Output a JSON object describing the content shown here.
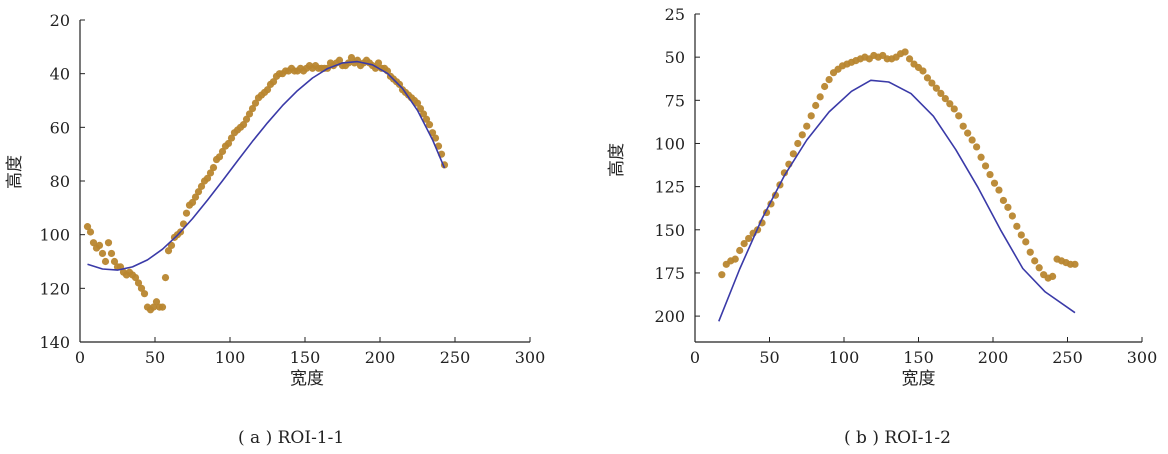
{
  "chart_data": [
    {
      "type": "scatter",
      "caption": "( a ) ROI-1-1",
      "xlabel": "宽度",
      "ylabel": "高度",
      "xlim": [
        0,
        300
      ],
      "ylim": [
        140,
        20
      ],
      "y_inverted": true,
      "xticks": [
        0,
        50,
        100,
        150,
        200,
        250,
        300
      ],
      "yticks": [
        20,
        40,
        60,
        80,
        100,
        120,
        140
      ],
      "colors": {
        "points": "#b8862f",
        "fit": "#3a3aa8"
      },
      "series": [
        {
          "kind": "points",
          "x": [
            5,
            7,
            9,
            11,
            13,
            15,
            17,
            19,
            21,
            23,
            25,
            27,
            29,
            31,
            33,
            35,
            37,
            39,
            41,
            43,
            45,
            47,
            49,
            51,
            53,
            55,
            57,
            59,
            61,
            63,
            65,
            67,
            69,
            71,
            73,
            75,
            77,
            79,
            81,
            83,
            85,
            87,
            89,
            91,
            93,
            95,
            97,
            99,
            101,
            103,
            105,
            107,
            109,
            111,
            113,
            115,
            117,
            119,
            121,
            123,
            125,
            127,
            129,
            131,
            133,
            135,
            137,
            139,
            141,
            143,
            145,
            147,
            149,
            151,
            153,
            155,
            157,
            159,
            161,
            163,
            165,
            167,
            169,
            171,
            173,
            175,
            177,
            179,
            181,
            183,
            185,
            187,
            189,
            191,
            193,
            195,
            197,
            199,
            201,
            203,
            205,
            207,
            209,
            211,
            213,
            215,
            217,
            219,
            221,
            223,
            225,
            227,
            229,
            231,
            233,
            235,
            237,
            239,
            241,
            243
          ],
          "y": [
            97,
            99,
            103,
            105,
            104,
            107,
            110,
            103,
            107,
            110,
            112,
            112,
            114,
            115,
            114,
            115,
            116,
            118,
            120,
            122,
            127,
            128,
            127,
            125,
            127,
            127,
            116,
            106,
            104,
            101,
            100,
            99,
            96,
            92,
            89,
            88,
            86,
            84,
            82,
            80,
            79,
            77,
            75,
            72,
            71,
            69,
            67,
            66,
            64,
            62,
            61,
            60,
            59,
            57,
            55,
            53,
            51,
            49,
            48,
            47,
            46,
            44,
            43,
            41,
            40,
            40,
            39,
            39,
            38,
            39,
            39,
            38,
            39,
            38,
            37,
            38,
            37,
            38,
            38,
            38,
            38,
            36,
            37,
            36,
            35,
            37,
            37,
            36,
            34,
            36,
            35,
            37,
            36,
            35,
            36,
            37,
            38,
            36,
            38,
            38,
            39,
            41,
            42,
            43,
            44,
            46,
            47,
            48,
            49,
            50,
            51,
            53,
            55,
            57,
            59,
            62,
            64,
            67,
            70,
            74
          ]
        },
        {
          "kind": "fit-curve",
          "x": [
            5,
            15,
            25,
            35,
            45,
            55,
            65,
            75,
            85,
            95,
            105,
            115,
            125,
            135,
            145,
            155,
            165,
            175,
            185,
            195,
            205,
            215,
            225,
            235,
            243
          ],
          "y": [
            111,
            112.8,
            113.2,
            112,
            109.4,
            105.4,
            100.2,
            94,
            87.1,
            79.9,
            72.5,
            65.2,
            58.3,
            51.9,
            46.3,
            41.6,
            38.1,
            36,
            35.5,
            36.7,
            39.9,
            45.5,
            53.7,
            64.6,
            75.2
          ]
        }
      ]
    },
    {
      "type": "scatter",
      "caption": "( b ) ROI-1-2",
      "xlabel": "宽度",
      "ylabel": "高度",
      "xlim": [
        0,
        300
      ],
      "ylim": [
        215,
        25
      ],
      "y_inverted": true,
      "xticks": [
        0,
        50,
        100,
        150,
        200,
        250,
        300
      ],
      "yticks": [
        25,
        50,
        75,
        100,
        125,
        150,
        175,
        200
      ],
      "colors": {
        "points": "#b8862f",
        "fit": "#3a3aa8"
      },
      "series": [
        {
          "kind": "points",
          "x": [
            18,
            21,
            24,
            27,
            30,
            33,
            36,
            39,
            42,
            45,
            48,
            51,
            54,
            57,
            60,
            63,
            66,
            69,
            72,
            75,
            78,
            81,
            84,
            87,
            90,
            93,
            96,
            99,
            102,
            105,
            108,
            111,
            114,
            117,
            120,
            123,
            126,
            129,
            132,
            135,
            138,
            141,
            144,
            147,
            150,
            153,
            156,
            159,
            162,
            165,
            168,
            171,
            174,
            177,
            180,
            183,
            186,
            189,
            192,
            195,
            198,
            201,
            204,
            207,
            210,
            213,
            216,
            219,
            222,
            225,
            228,
            231,
            234,
            237,
            240,
            243,
            246,
            249,
            252,
            255
          ],
          "y": [
            176,
            170,
            168,
            167,
            162,
            158,
            155,
            152,
            150,
            146,
            140,
            135,
            130,
            124,
            117,
            112,
            106,
            100,
            95,
            90,
            84,
            78,
            73,
            67,
            63,
            59,
            57,
            55,
            54,
            53,
            52,
            51,
            50,
            51,
            49,
            50,
            49,
            51,
            51,
            50,
            48,
            47,
            51,
            54,
            56,
            58,
            62,
            65,
            68,
            71,
            74,
            77,
            80,
            84,
            90,
            94,
            98,
            102,
            108,
            113,
            118,
            123,
            127,
            133,
            137,
            142,
            148,
            153,
            157,
            163,
            168,
            172,
            176,
            178,
            177,
            167,
            168,
            169,
            170,
            170
          ]
        },
        {
          "kind": "fit-curve",
          "x": [
            16,
            30,
            45,
            60,
            75,
            90,
            105,
            118,
            130,
            145,
            160,
            175,
            190,
            205,
            220,
            235,
            255
          ],
          "y": [
            203,
            172.7,
            143.6,
            118.6,
            98,
            81.7,
            69.8,
            63.4,
            64.4,
            71.1,
            84.2,
            103.6,
            125.6,
            150,
            172.4,
            186,
            198
          ]
        }
      ]
    }
  ]
}
